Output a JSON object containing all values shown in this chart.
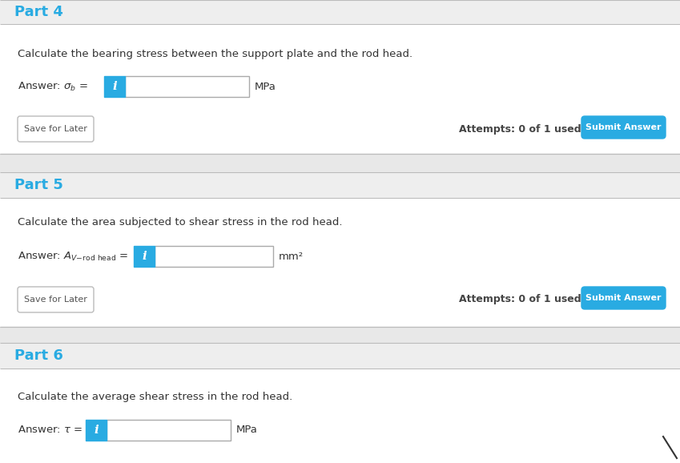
{
  "bg_color": "#ffffff",
  "light_gray_bg": "#eeeeee",
  "separator_color": "#cccccc",
  "blue_color": "#29abe2",
  "btn_blue": "#29abe2",
  "text_color": "#333333",
  "part4_title": "Part 4",
  "part4_question": "Calculate the bearing stress between the support plate and the rod head.",
  "part4_unit": "MPa",
  "part4_save_btn": "Save for Later",
  "part4_attempts": "Attempts: 0 of 1 used",
  "part4_submit_btn": "Submit Answer",
  "part5_title": "Part 5",
  "part5_question": "Calculate the area subjected to shear stress in the rod head.",
  "part5_unit": "mm²",
  "part5_save_btn": "Save for Later",
  "part5_attempts": "Attempts: 0 of 1 used",
  "part5_submit_btn": "Submit Answer",
  "part6_title": "Part 6",
  "part6_question": "Calculate the average shear stress in the rod head.",
  "part6_unit": "MPa",
  "diag_line": [
    [
      828,
      545
    ],
    [
      845,
      572
    ]
  ],
  "fig_w": 8.49,
  "fig_h": 5.78,
  "dpi": 100
}
